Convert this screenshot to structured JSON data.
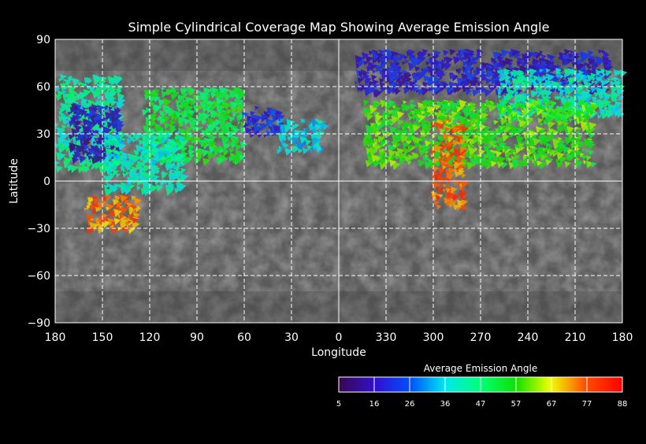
{
  "chart_data": {
    "type": "heatmap",
    "title": "Simple Cylindrical Coverage Map Showing Average Emission Angle",
    "xlabel": "Longitude",
    "ylabel": "Latitude",
    "x_ticks": [
      "180",
      "150",
      "120",
      "90",
      "60",
      "30",
      "0",
      "330",
      "300",
      "270",
      "240",
      "210",
      "180"
    ],
    "x_tick_values": [
      180,
      150,
      120,
      90,
      60,
      30,
      0,
      330,
      300,
      270,
      240,
      210,
      180
    ],
    "y_ticks": [
      "90",
      "60",
      "30",
      "0",
      "−30",
      "−60",
      "−90"
    ],
    "y_tick_values": [
      90,
      60,
      30,
      0,
      -30,
      -60,
      -90
    ],
    "grid": true,
    "colorbar": {
      "title": "Average Emission Angle",
      "labels": [
        "5",
        "16",
        "26",
        "36",
        "47",
        "57",
        "67",
        "77",
        "88"
      ],
      "values": [
        5,
        16,
        26,
        36,
        47,
        57,
        67,
        77,
        88
      ],
      "colors": [
        "#3a0850",
        "#3010d0",
        "#0050ff",
        "#00e8f0",
        "#00ff70",
        "#10e000",
        "#f0ff00",
        "#ff5000",
        "#ff0000"
      ],
      "placement": "bottom-right"
    },
    "coverage_regions": [
      {
        "lon": [
          180,
          140
        ],
        "lat": [
          68,
          8
        ],
        "angle": 42
      },
      {
        "lon": [
          172,
          140
        ],
        "lat": [
          50,
          15
        ],
        "angle": 14
      },
      {
        "lon": [
          125,
          62
        ],
        "lat": [
          60,
          14
        ],
        "angle": 52
      },
      {
        "lon": [
          150,
          100
        ],
        "lat": [
          32,
          -5
        ],
        "angle": 40
      },
      {
        "lon": [
          162,
          128
        ],
        "lat": [
          -8,
          -30
        ],
        "angle": 75
      },
      {
        "lon": [
          62,
          38
        ],
        "lat": [
          48,
          30
        ],
        "angle": 20
      },
      {
        "lon": [
          40,
          10
        ],
        "lat": [
          40,
          20
        ],
        "angle": 36
      },
      {
        "lon": [
          350,
          190
        ],
        "lat": [
          84,
          58
        ],
        "angle": 17
      },
      {
        "lon": [
          260,
          181
        ],
        "lat": [
          72,
          42
        ],
        "angle": 40
      },
      {
        "lon": [
          345,
          200
        ],
        "lat": [
          52,
          12
        ],
        "angle": 58
      },
      {
        "lon": [
          302,
          282
        ],
        "lat": [
          40,
          -15
        ],
        "angle": 77
      }
    ]
  }
}
